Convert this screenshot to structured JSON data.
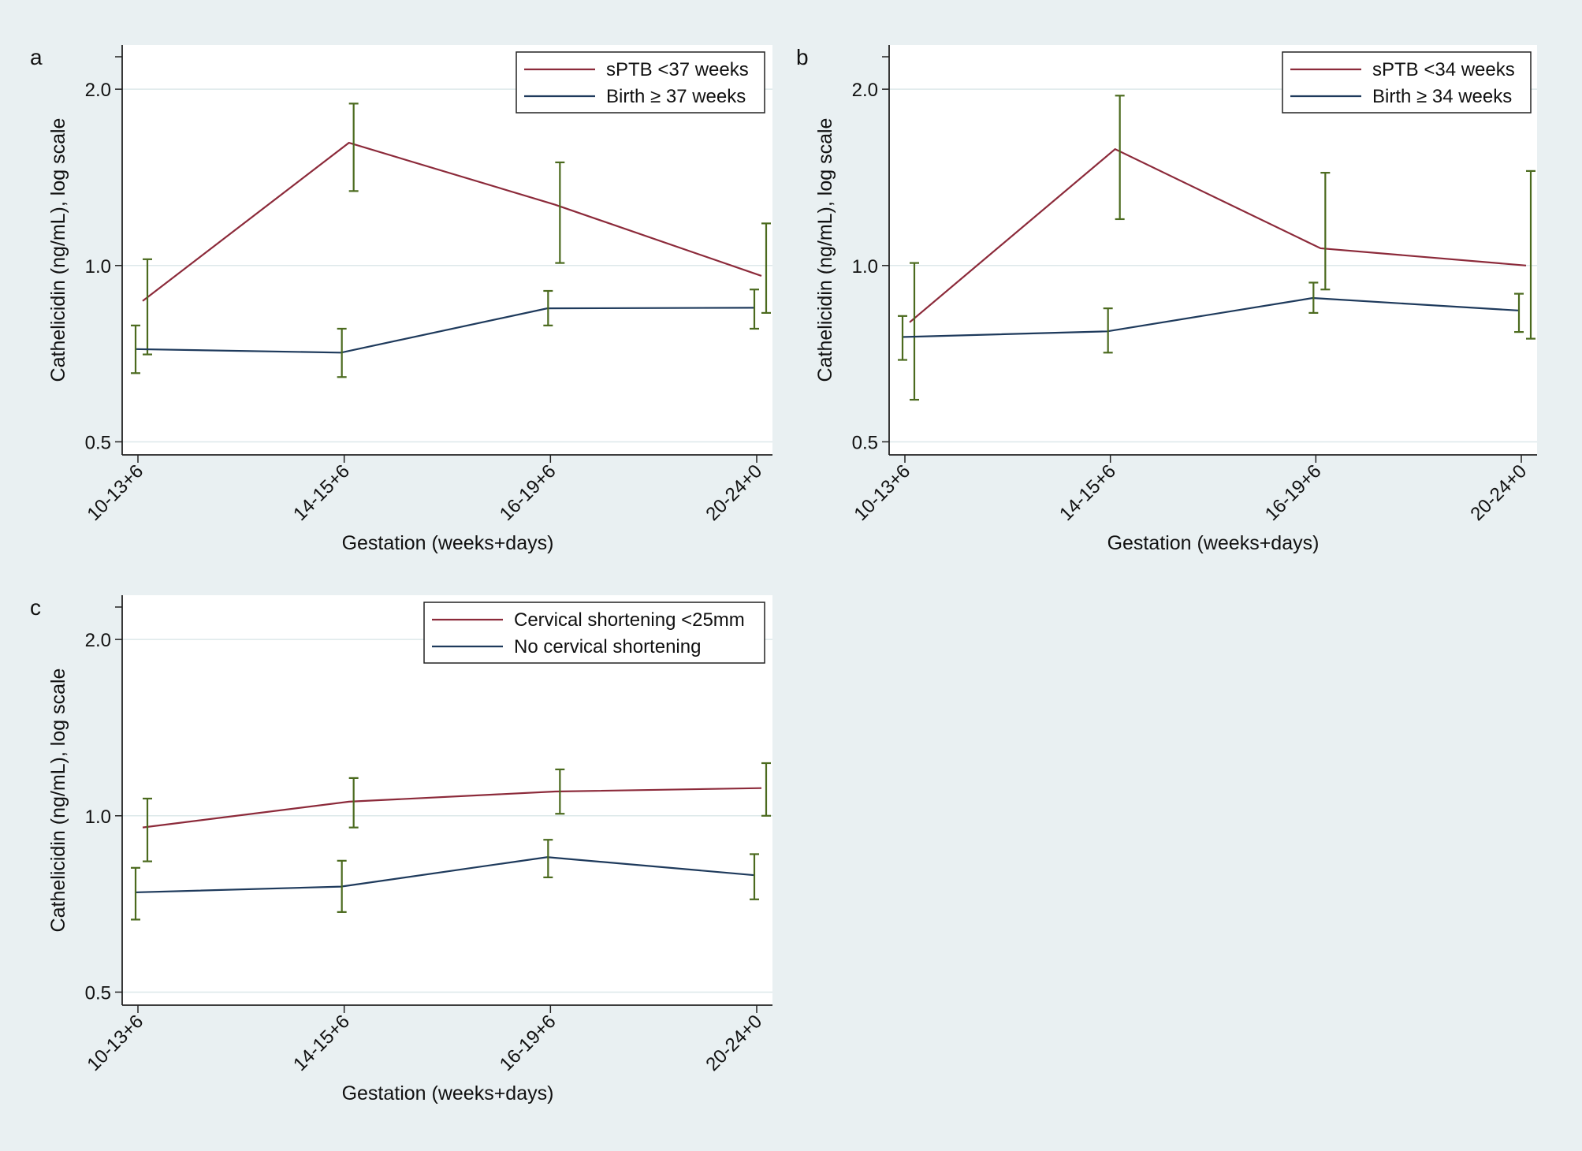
{
  "colors": {
    "page_bg": "#e9f0f2",
    "plot_bg": "#ffffff",
    "grid": "#dde8ea",
    "axis": "#222222",
    "series_red": "#8c2a3a",
    "series_blue": "#1e3a5c",
    "error_bar": "#4b6a1e"
  },
  "chart_data": [
    {
      "type": "line",
      "panel_label": "a",
      "xlabel": "Gestation (weeks+days)",
      "ylabel": "Cathelicidin (ng/mL), log scale",
      "yscale": "log",
      "ylim": [
        0.475,
        2.38
      ],
      "yticks": [
        "0.5",
        "1.0",
        "2.0"
      ],
      "categories": [
        "10-13+6",
        "14-15+6",
        "16-19+6",
        "20-24+0"
      ],
      "legend_position": "top-right",
      "series": [
        {
          "name": "sPTB <37 weeks",
          "color": "series_red",
          "values": [
            0.87,
            1.62,
            1.27,
            0.96
          ],
          "ci_low": [
            0.705,
            1.34,
            1.01,
            0.83
          ],
          "ci_high": [
            1.025,
            1.89,
            1.5,
            1.18
          ]
        },
        {
          "name": "Birth ≥ 37 weeks",
          "color": "series_blue",
          "values": [
            0.72,
            0.71,
            0.845,
            0.847
          ],
          "ci_low": [
            0.655,
            0.645,
            0.79,
            0.78
          ],
          "ci_high": [
            0.79,
            0.78,
            0.905,
            0.91
          ]
        }
      ]
    },
    {
      "type": "line",
      "panel_label": "b",
      "xlabel": "Gestation (weeks+days)",
      "ylabel": "Cathelicidin (ng/mL), log scale",
      "yscale": "log",
      "ylim": [
        0.475,
        2.38
      ],
      "yticks": [
        "0.5",
        "1.0",
        "2.0"
      ],
      "categories": [
        "10-13+6",
        "14-15+6",
        "16-19+6",
        "20-24+0"
      ],
      "legend_position": "top-right",
      "series": [
        {
          "name": "sPTB <34 weeks",
          "color": "series_red",
          "values": [
            0.8,
            1.58,
            1.07,
            1.0
          ],
          "ci_low": [
            0.59,
            1.2,
            0.91,
            0.75
          ],
          "ci_high": [
            1.01,
            1.95,
            1.44,
            1.45
          ]
        },
        {
          "name": "Birth ≥ 34 weeks",
          "color": "series_blue",
          "values": [
            0.755,
            0.772,
            0.88,
            0.838
          ],
          "ci_low": [
            0.69,
            0.71,
            0.83,
            0.77
          ],
          "ci_high": [
            0.82,
            0.845,
            0.935,
            0.895
          ]
        }
      ]
    },
    {
      "type": "line",
      "panel_label": "c",
      "xlabel": "Gestation (weeks+days)",
      "ylabel": "Cathelicidin (ng/mL), log scale",
      "yscale": "log",
      "ylim": [
        0.475,
        2.38
      ],
      "yticks": [
        "0.5",
        "1.0",
        "2.0"
      ],
      "categories": [
        "10-13+6",
        "14-15+6",
        "16-19+6",
        "20-24+0"
      ],
      "legend_position": "top-right",
      "series": [
        {
          "name": "Cervical shortening <25mm",
          "color": "series_red",
          "values": [
            0.955,
            1.057,
            1.1,
            1.115
          ],
          "ci_low": [
            0.836,
            0.955,
            1.008,
            1.0
          ],
          "ci_high": [
            1.07,
            1.16,
            1.2,
            1.23
          ]
        },
        {
          "name": "No cervical shortening",
          "color": "series_blue",
          "values": [
            0.74,
            0.757,
            0.85,
            0.792
          ],
          "ci_low": [
            0.665,
            0.685,
            0.785,
            0.72
          ],
          "ci_high": [
            0.815,
            0.838,
            0.91,
            0.86
          ]
        }
      ]
    }
  ]
}
